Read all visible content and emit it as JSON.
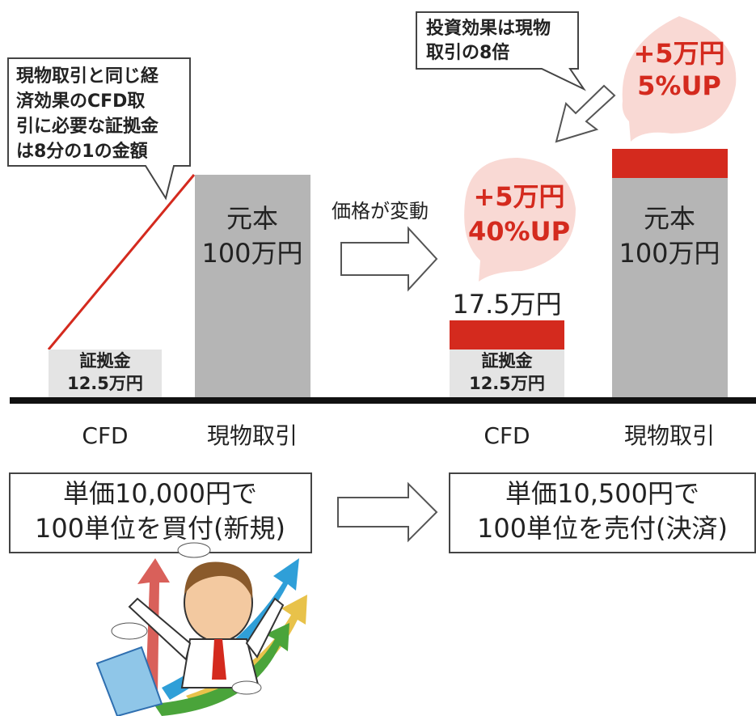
{
  "callouts": [
    {
      "lines": [
        "現物取引と同じ経",
        "済効果のCFD取",
        "引に必要な証拠金",
        "は8分の1の金額"
      ]
    },
    {
      "lines": [
        "投資効果は現物",
        "取引の8倍"
      ]
    }
  ],
  "bubbles": [
    {
      "lines": [
        "+5万円",
        "40%UP"
      ]
    },
    {
      "lines": [
        "+5万円",
        "5%UP"
      ]
    }
  ],
  "price_change": "価格が変動",
  "before": {
    "cfd": {
      "label": "CFD",
      "margin_lines": [
        "証拠金",
        "12.5万円"
      ]
    },
    "spot": {
      "label": "現物取引",
      "principal_lines": [
        "元本",
        "100万円"
      ]
    }
  },
  "after": {
    "cfd": {
      "label": "CFD",
      "total": "17.5万円",
      "margin_lines": [
        "証拠金",
        "12.5万円"
      ]
    },
    "spot": {
      "label": "現物取引",
      "principal_lines": [
        "元本",
        "100万円"
      ]
    }
  },
  "trades": [
    {
      "lines": [
        "単価10,000円で",
        "100単位を買付(新規)"
      ]
    },
    {
      "lines": [
        "単価10,500円で",
        "100単位を売付(決済)"
      ]
    }
  ]
}
